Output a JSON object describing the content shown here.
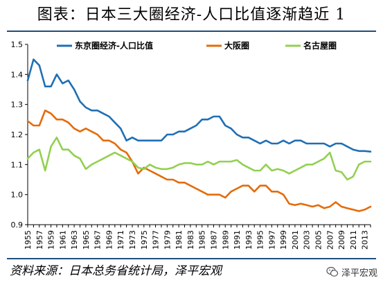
{
  "title": "图表：日本三大圈经济-人口比值逐渐趋近 1",
  "source": "资料来源：日本总务省统计局，泽平宏观",
  "watermark": "泽平宏观",
  "chart_data": {
    "type": "line",
    "title": "图表：日本三大圈经济-人口比值逐渐趋近 1",
    "xlabel": "",
    "ylabel": "",
    "ylim": [
      0.9,
      1.5
    ],
    "yticks": [
      "0.9",
      "1.0",
      "1.1",
      "1.2",
      "1.3",
      "1.4",
      "1.5"
    ],
    "xticks": [
      "1955",
      "1957",
      "1959",
      "1961",
      "1963",
      "1965",
      "1967",
      "1969",
      "1971",
      "1973",
      "1975",
      "1977",
      "1979",
      "1981",
      "1983",
      "1985",
      "1987",
      "1989",
      "1991",
      "1993",
      "1995",
      "1997",
      "1999",
      "2001",
      "2003",
      "2005",
      "2007",
      "2009",
      "2011",
      "2013"
    ],
    "legend_position": "top",
    "grid": false,
    "x": [
      1955,
      1956,
      1957,
      1958,
      1959,
      1960,
      1961,
      1962,
      1963,
      1964,
      1965,
      1966,
      1967,
      1968,
      1969,
      1970,
      1971,
      1972,
      1973,
      1974,
      1975,
      1976,
      1977,
      1978,
      1979,
      1980,
      1981,
      1982,
      1983,
      1984,
      1985,
      1986,
      1987,
      1988,
      1989,
      1990,
      1991,
      1992,
      1993,
      1994,
      1995,
      1996,
      1997,
      1998,
      1999,
      2000,
      2001,
      2002,
      2003,
      2004,
      2005,
      2006,
      2007,
      2008,
      2009,
      2010,
      2011,
      2012,
      2013,
      2014
    ],
    "series": [
      {
        "name": "东京圈经济-人口比值",
        "color": "#1f6fb4",
        "values": [
          1.38,
          1.45,
          1.43,
          1.36,
          1.36,
          1.4,
          1.37,
          1.38,
          1.35,
          1.31,
          1.29,
          1.28,
          1.28,
          1.27,
          1.26,
          1.24,
          1.22,
          1.18,
          1.19,
          1.18,
          1.18,
          1.18,
          1.18,
          1.18,
          1.2,
          1.2,
          1.21,
          1.21,
          1.22,
          1.23,
          1.25,
          1.25,
          1.26,
          1.26,
          1.23,
          1.22,
          1.2,
          1.19,
          1.19,
          1.18,
          1.17,
          1.18,
          1.17,
          1.17,
          1.18,
          1.17,
          1.18,
          1.18,
          1.17,
          1.17,
          1.17,
          1.17,
          1.16,
          1.17,
          1.17,
          1.16,
          1.15,
          1.145,
          1.145,
          1.143
        ]
      },
      {
        "name": "大阪圈",
        "color": "#e36c0a",
        "values": [
          1.245,
          1.23,
          1.23,
          1.28,
          1.27,
          1.25,
          1.25,
          1.24,
          1.22,
          1.21,
          1.22,
          1.21,
          1.2,
          1.18,
          1.18,
          1.17,
          1.15,
          1.14,
          1.11,
          1.07,
          1.09,
          1.08,
          1.07,
          1.06,
          1.05,
          1.05,
          1.04,
          1.04,
          1.03,
          1.02,
          1.01,
          1.0,
          1.0,
          1.0,
          0.99,
          1.01,
          1.02,
          1.03,
          1.03,
          1.01,
          1.03,
          1.03,
          1.01,
          1.01,
          1.0,
          0.97,
          0.965,
          0.97,
          0.965,
          0.96,
          0.965,
          0.955,
          0.96,
          0.975,
          0.96,
          0.955,
          0.95,
          0.945,
          0.95,
          0.96
        ]
      },
      {
        "name": "名古屋圈",
        "color": "#92d050",
        "values": [
          1.12,
          1.14,
          1.15,
          1.08,
          1.16,
          1.19,
          1.15,
          1.15,
          1.13,
          1.12,
          1.085,
          1.1,
          1.11,
          1.12,
          1.13,
          1.14,
          1.13,
          1.12,
          1.11,
          1.09,
          1.085,
          1.1,
          1.09,
          1.085,
          1.085,
          1.09,
          1.1,
          1.105,
          1.105,
          1.1,
          1.1,
          1.11,
          1.1,
          1.11,
          1.11,
          1.11,
          1.115,
          1.1,
          1.09,
          1.08,
          1.08,
          1.1,
          1.08,
          1.085,
          1.08,
          1.07,
          1.08,
          1.09,
          1.1,
          1.1,
          1.11,
          1.12,
          1.14,
          1.08,
          1.075,
          1.05,
          1.06,
          1.1,
          1.11,
          1.11
        ]
      }
    ]
  }
}
